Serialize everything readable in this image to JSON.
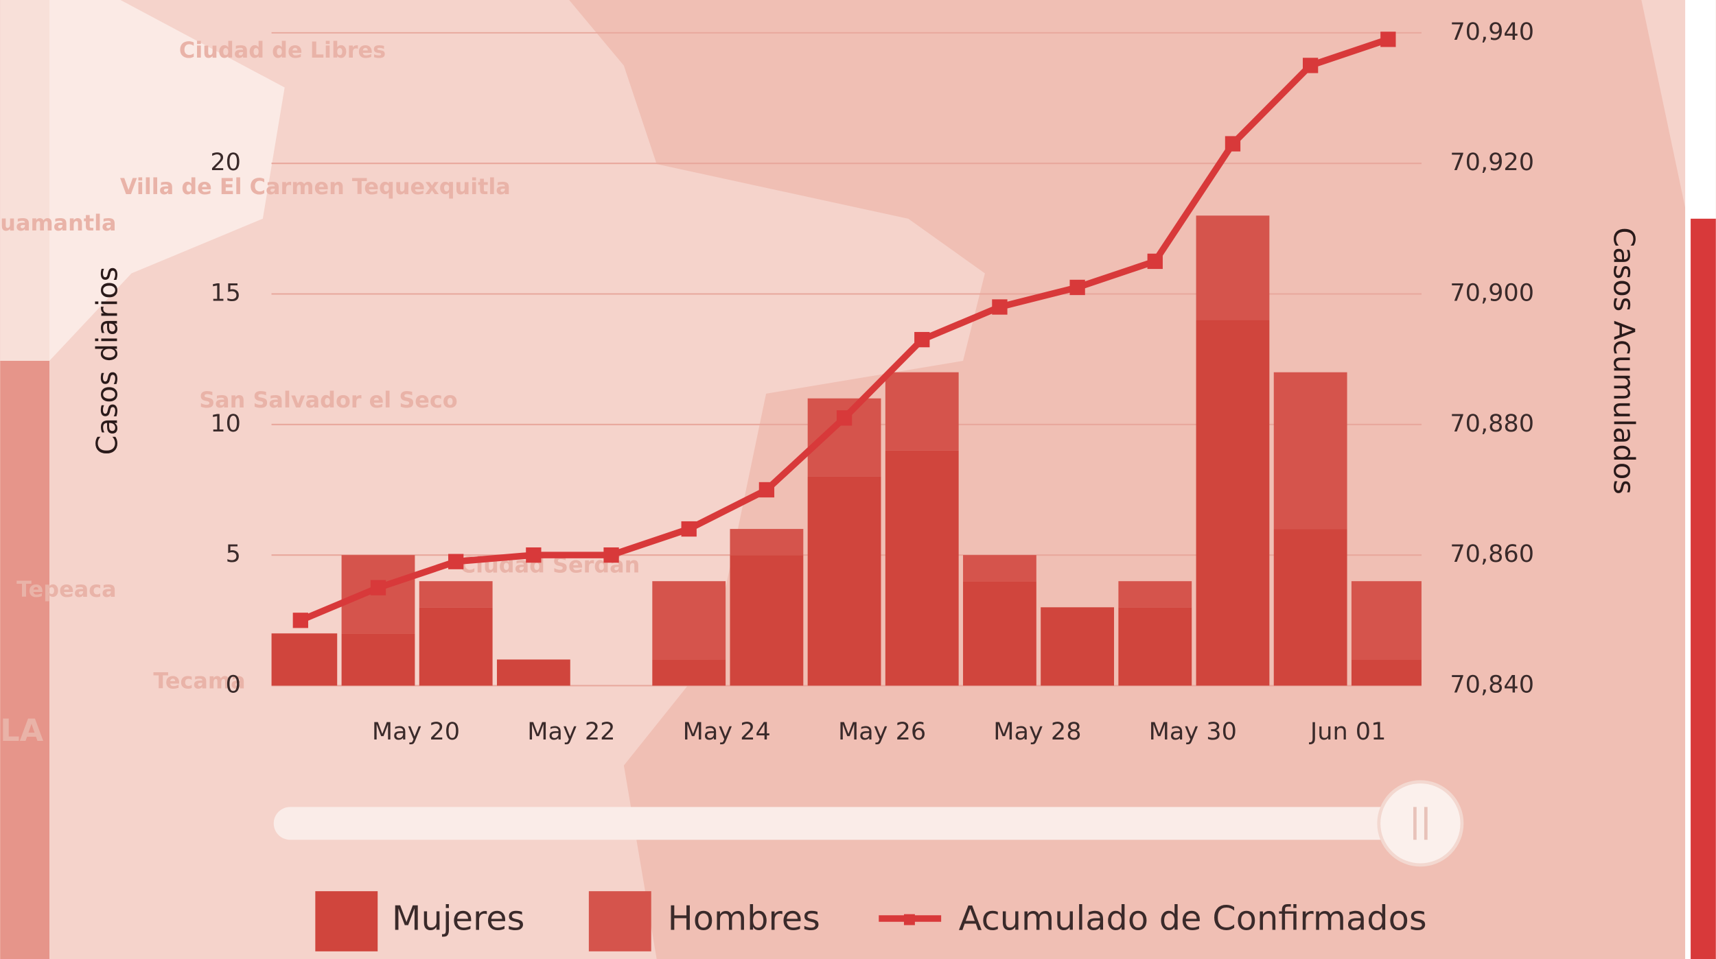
{
  "map_labels": [
    "Ciudad de Libres",
    "Villa de El Carmen Tequexquitla",
    "uamantla",
    "San Salvador el Seco",
    "Tepeaca",
    "Ciudad Serdán",
    "Tecama",
    "LA"
  ],
  "chart_data": {
    "type": "bar",
    "stacked": true,
    "categories": [
      null,
      null,
      "May 20",
      null,
      "May 22",
      null,
      "May 24",
      null,
      "May 26",
      null,
      "May 28",
      null,
      "May 30",
      null,
      "Jun 01"
    ],
    "ylabel": "Casos diarios",
    "y2label": "Casos Acumulados",
    "ylim": [
      0,
      25
    ],
    "yticks": [
      0,
      5,
      10,
      15,
      20
    ],
    "y2lim": [
      70840,
      70940
    ],
    "y2ticks": [
      {
        "value": 70840,
        "label": "70,840"
      },
      {
        "value": 70860,
        "label": "70,860"
      },
      {
        "value": 70880,
        "label": "70,880"
      },
      {
        "value": 70900,
        "label": "70,900"
      },
      {
        "value": 70920,
        "label": "70,920"
      },
      {
        "value": 70940,
        "label": "70,940"
      }
    ],
    "grid": true,
    "series": [
      {
        "name": "Mujeres",
        "color": "#d0453d",
        "values": [
          2,
          2,
          3,
          1,
          0,
          1,
          5,
          8,
          9,
          4,
          3,
          3,
          14,
          6,
          1
        ]
      },
      {
        "name": "Hombres",
        "color": "#d5544c",
        "values": [
          0,
          3,
          1,
          0,
          0,
          3,
          1,
          3,
          3,
          1,
          0,
          1,
          4,
          6,
          3
        ]
      },
      {
        "name": "Acumulado de Confirmados",
        "type": "line",
        "axis": "y2",
        "color": "#d8393a",
        "values": [
          70850,
          70855,
          70859,
          70860,
          70860,
          70864,
          70870,
          70881,
          70893,
          70898,
          70901,
          70905,
          70923,
          70935,
          70939
        ]
      }
    ]
  }
}
